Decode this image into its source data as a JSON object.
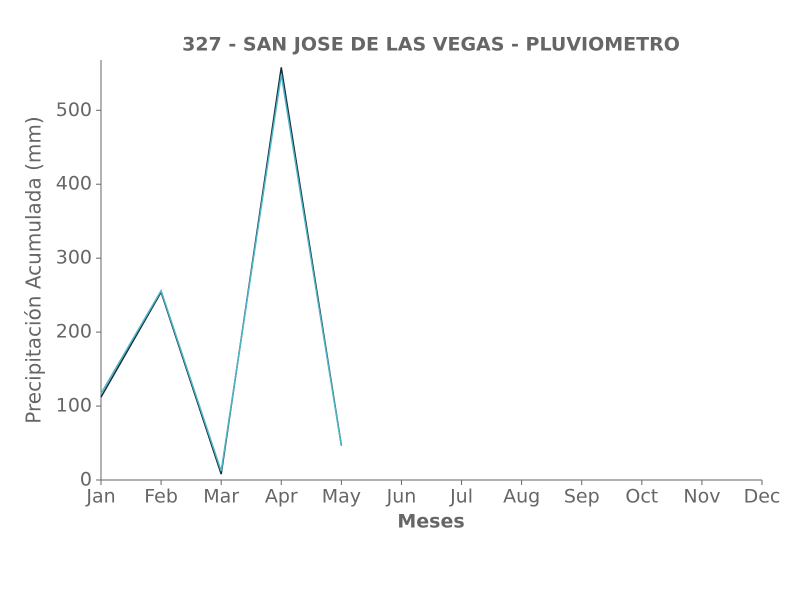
{
  "chart_data": {
    "type": "line",
    "title": "327 - SAN JOSE DE LAS VEGAS - PLUVIOMETRO",
    "x_label": "Meses",
    "y_label": "Precipitación Acumulada (mm)",
    "categories": [
      "Jan",
      "Feb",
      "Mar",
      "Apr",
      "May",
      "Jun",
      "Jul",
      "Aug",
      "Sep",
      "Oct",
      "Nov",
      "Dec"
    ],
    "series": [
      {
        "color": "#1b2b3b",
        "values": [
          112,
          254,
          8,
          558,
          47,
          null,
          null,
          null,
          null,
          null,
          null,
          null
        ]
      },
      {
        "color": "#4db6c6",
        "values": [
          117,
          256,
          12,
          548,
          46,
          null,
          null,
          null,
          null,
          null,
          null,
          null
        ]
      }
    ],
    "ylim": [
      0,
      568
    ],
    "yticks": [
      0,
      100,
      200,
      300,
      400,
      500
    ],
    "grid": false
  }
}
